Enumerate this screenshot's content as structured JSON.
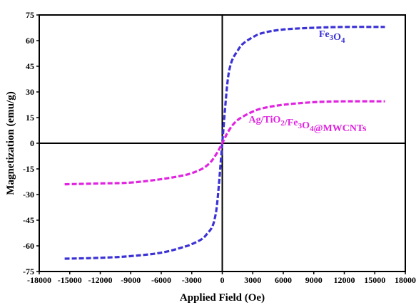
{
  "chart_data": {
    "type": "line",
    "title": "",
    "xlabel": "Applied Field (Oe)",
    "ylabel": "Magnetization (emu/g)",
    "xlim": [
      -18000,
      18000
    ],
    "ylim": [
      -75,
      75
    ],
    "x_ticks": [
      -18000,
      -15000,
      -12000,
      -9000,
      -6000,
      -3000,
      0,
      3000,
      6000,
      9000,
      12000,
      15000,
      18000
    ],
    "y_ticks": [
      -75,
      -60,
      -45,
      -30,
      -15,
      0,
      15,
      30,
      45,
      60,
      75
    ],
    "grid": false,
    "series": [
      {
        "name": "Fe3O4",
        "color": "#3b32d6",
        "x": [
          -15500,
          -12000,
          -9000,
          -6000,
          -4000,
          -3000,
          -2000,
          -1500,
          -1000,
          -700,
          -500,
          -300,
          -150,
          0,
          150,
          300,
          500,
          700,
          1000,
          1500,
          2000,
          3000,
          4000,
          6000,
          9000,
          12000,
          16000
        ],
        "y": [
          -67.5,
          -67,
          -66,
          -64,
          -61,
          -59,
          -56,
          -53,
          -49,
          -43,
          -35,
          -22,
          -11,
          0,
          11,
          22,
          35,
          43,
          49,
          54,
          58,
          62,
          64.5,
          66.5,
          67.5,
          68,
          68
        ]
      },
      {
        "name": "Ag/TiO2/Fe3O4@MWCNTs",
        "color": "#e024e0",
        "x": [
          -15500,
          -12000,
          -9000,
          -6000,
          -4000,
          -3000,
          -2000,
          -1500,
          -1000,
          -500,
          -250,
          0,
          250,
          500,
          1000,
          1500,
          2000,
          3000,
          4000,
          6000,
          9000,
          12000,
          16000
        ],
        "y": [
          -24,
          -23.5,
          -23,
          -21,
          -19,
          -17.5,
          -15,
          -13,
          -10,
          -5.5,
          -2.8,
          0,
          3,
          6,
          10.5,
          13.5,
          15.5,
          18.5,
          20.5,
          22.5,
          24,
          24.5,
          24.5
        ]
      }
    ],
    "annotations": [
      {
        "series": 0,
        "text_parts": [
          [
            "Fe",
            "n"
          ],
          [
            "3",
            "sub"
          ],
          [
            "O",
            "n"
          ],
          [
            "4",
            "sub"
          ]
        ],
        "at": [
          9500,
          62
        ]
      },
      {
        "series": 1,
        "text_parts": [
          [
            "Ag/TiO",
            "n"
          ],
          [
            "2",
            "sub"
          ],
          [
            "/Fe",
            "n"
          ],
          [
            "3",
            "sub"
          ],
          [
            "O",
            "n"
          ],
          [
            "4",
            "sub"
          ],
          [
            "@MWCNTs",
            "n"
          ]
        ],
        "at": [
          2600,
          12
        ]
      }
    ]
  }
}
